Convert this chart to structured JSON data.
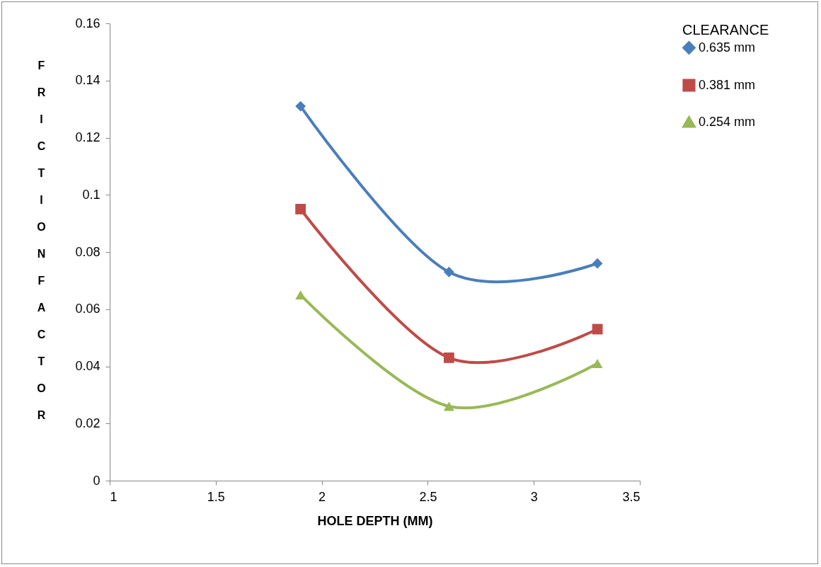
{
  "chart_data": {
    "type": "line",
    "xlabel": "HOLE DEPTH (MM)",
    "ylabel": "FRICTION FACTOR",
    "legend_title": "CLEARANCE",
    "x": [
      1.9,
      2.6,
      3.3
    ],
    "series": [
      {
        "name": "0.635 mm",
        "color": "#4a7ebb",
        "marker": "diamond",
        "values": [
          0.131,
          0.073,
          0.076
        ]
      },
      {
        "name": "0.381 mm",
        "color": "#be4b48",
        "marker": "square",
        "values": [
          0.095,
          0.043,
          0.053
        ]
      },
      {
        "name": "0.254 mm",
        "color": "#98b954",
        "marker": "triangle",
        "values": [
          0.065,
          0.026,
          0.041
        ]
      }
    ],
    "xlim": [
      1,
      3.5
    ],
    "xticks": [
      1,
      1.5,
      2,
      2.5,
      3,
      3.5
    ],
    "ylim": [
      0,
      0.16
    ],
    "yticks": [
      0,
      0.02,
      0.04,
      0.06,
      0.08,
      0.1,
      0.12,
      0.14,
      0.16
    ],
    "grid": false,
    "legend": "right",
    "line_style": "solid"
  }
}
